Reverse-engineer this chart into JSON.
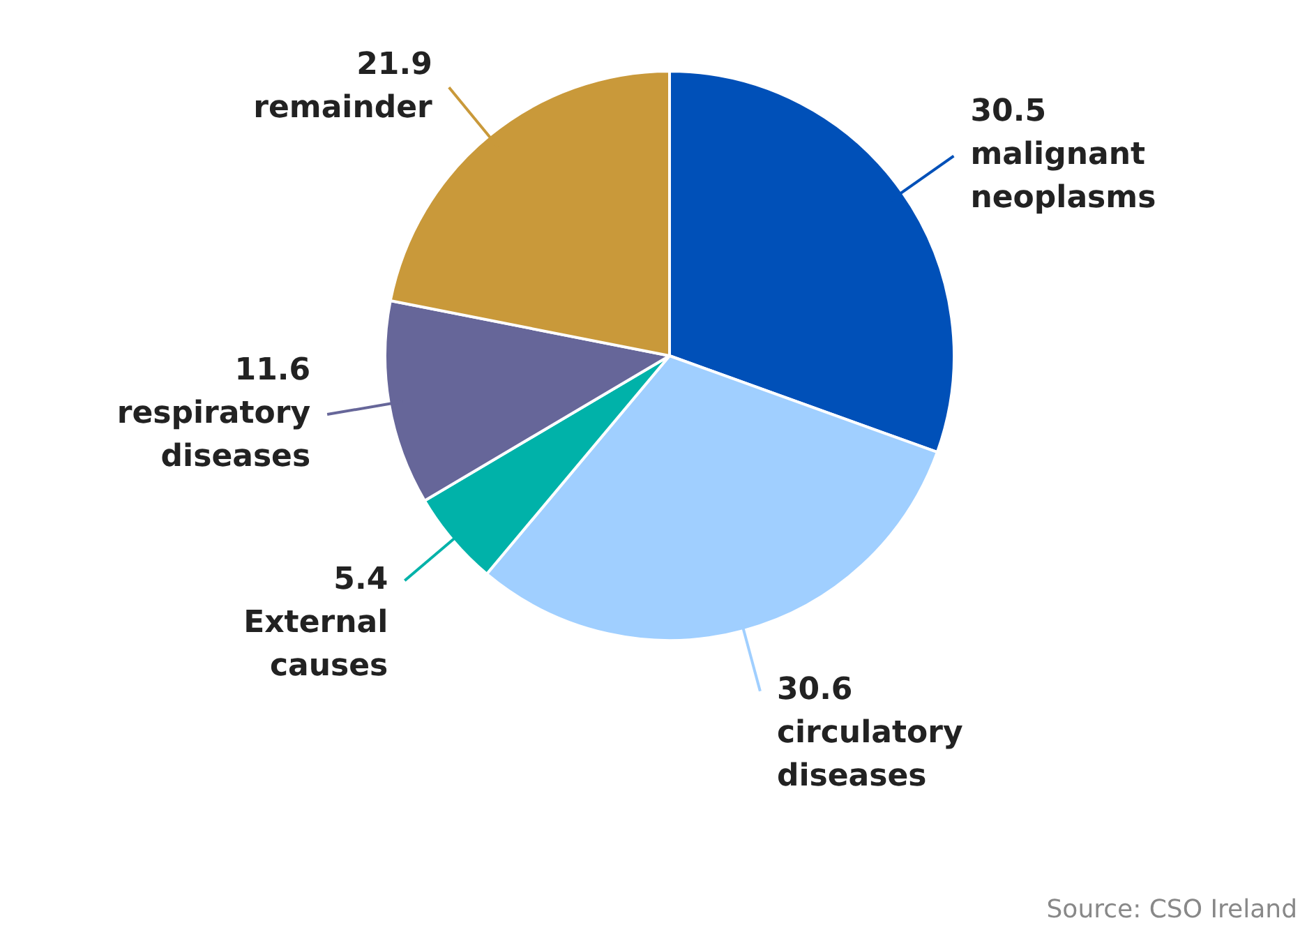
{
  "chart_data": {
    "type": "pie",
    "categories": [
      "malignant neoplasms",
      "circulatory diseases",
      "External causes",
      "respiratory diseases",
      "remainder"
    ],
    "values": [
      30.5,
      30.6,
      5.4,
      11.6,
      21.9
    ],
    "colors": [
      "#0050b8",
      "#a0cfff",
      "#00b2a9",
      "#666699",
      "#c9993a"
    ],
    "data_labels": true,
    "legend": false,
    "annotations": [
      "Source: CSO Ireland"
    ]
  }
}
